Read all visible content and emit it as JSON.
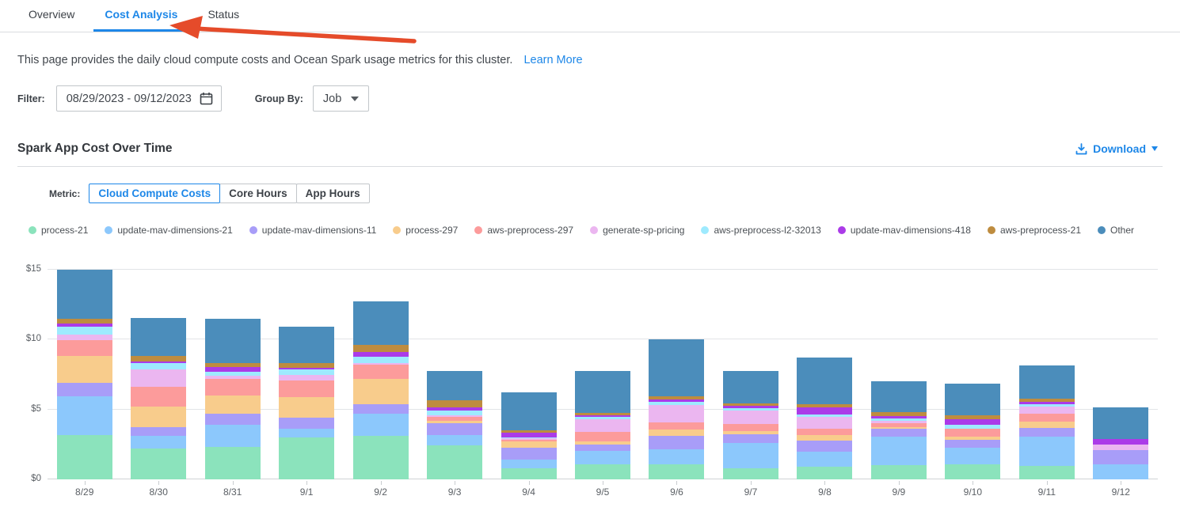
{
  "tabs": [
    {
      "label": "Overview",
      "active": false
    },
    {
      "label": "Cost Analysis",
      "active": true
    },
    {
      "label": "Status",
      "active": false
    }
  ],
  "arrow_color": "#e54b2a",
  "description": {
    "text": "This page provides the daily cloud compute costs and Ocean Spark usage metrics for this cluster.",
    "link_label": "Learn More"
  },
  "filter": {
    "label": "Filter:",
    "date_range": "08/29/2023  -  09/12/2023",
    "group_by_label": "Group By:",
    "group_by_value": "Job"
  },
  "section": {
    "title": "Spark App Cost Over Time",
    "download_label": "Download"
  },
  "metric": {
    "label": "Metric:",
    "options": [
      "Cloud Compute Costs",
      "Core Hours",
      "App Hours"
    ],
    "active": "Cloud Compute Costs"
  },
  "accent_blue": "#1d87e8",
  "chart_data": {
    "type": "bar",
    "stacked": true,
    "title": "Spark App Cost Over Time",
    "xlabel": "",
    "ylabel": "Cloud Compute Costs ($)",
    "ylim": [
      0,
      15
    ],
    "yticks": [
      {
        "value": 0,
        "label": "$0"
      },
      {
        "value": 5,
        "label": "$5"
      },
      {
        "value": 10,
        "label": "$10"
      },
      {
        "value": 15,
        "label": "$15"
      }
    ],
    "grid": true,
    "legend_position": "top",
    "categories": [
      "8/29",
      "8/30",
      "8/31",
      "9/1",
      "9/2",
      "9/3",
      "9/4",
      "9/5",
      "9/6",
      "9/7",
      "9/8",
      "9/9",
      "9/10",
      "9/11",
      "9/12"
    ],
    "series": [
      {
        "name": "process-21",
        "color": "#8be3bc",
        "values": [
          3.15,
          2.2,
          2.3,
          3.0,
          3.1,
          2.45,
          0.8,
          1.05,
          1.1,
          0.8,
          0.9,
          1.0,
          1.05,
          0.95,
          0.0
        ]
      },
      {
        "name": "update-mav-dimensions-21",
        "color": "#8cc8fc",
        "values": [
          2.8,
          0.9,
          1.6,
          0.6,
          1.6,
          0.7,
          0.6,
          1.0,
          1.05,
          1.8,
          1.1,
          2.05,
          1.2,
          2.1,
          1.1
        ]
      },
      {
        "name": "update-mav-dimensions-11",
        "color": "#a89df8",
        "values": [
          0.95,
          0.65,
          0.8,
          0.8,
          0.7,
          0.85,
          0.85,
          0.45,
          0.95,
          0.6,
          0.75,
          0.55,
          0.6,
          0.65,
          1.0
        ]
      },
      {
        "name": "process-297",
        "color": "#f8cc8c",
        "values": [
          1.95,
          1.45,
          1.3,
          1.5,
          1.8,
          0.2,
          0.45,
          0.2,
          0.45,
          0.25,
          0.4,
          0.15,
          0.2,
          0.45,
          0.0
        ]
      },
      {
        "name": "aws-preprocess-297",
        "color": "#fc9b9b",
        "values": [
          1.1,
          1.4,
          1.2,
          1.2,
          1.0,
          0.3,
          0.15,
          0.7,
          0.5,
          0.5,
          0.45,
          0.3,
          0.55,
          0.55,
          0.0
        ]
      },
      {
        "name": "generate-sp-pricing",
        "color": "#ebb6f0",
        "values": [
          0.4,
          1.25,
          0.2,
          0.4,
          0.1,
          0.1,
          0.1,
          0.9,
          1.3,
          1.0,
          0.85,
          0.15,
          0.05,
          0.5,
          0.4
        ]
      },
      {
        "name": "aws-preprocess-l2-32013",
        "color": "#9eeafe",
        "values": [
          0.6,
          0.45,
          0.3,
          0.35,
          0.45,
          0.3,
          0.05,
          0.2,
          0.2,
          0.15,
          0.2,
          0.15,
          0.25,
          0.2,
          0.0
        ]
      },
      {
        "name": "update-mav-dimensions-418",
        "color": "#ab3be8",
        "values": [
          0.2,
          0.15,
          0.35,
          0.15,
          0.35,
          0.25,
          0.35,
          0.1,
          0.15,
          0.15,
          0.5,
          0.2,
          0.4,
          0.15,
          0.4
        ]
      },
      {
        "name": "aws-preprocess-21",
        "color": "#be8c3f",
        "values": [
          0.35,
          0.4,
          0.3,
          0.35,
          0.5,
          0.5,
          0.15,
          0.15,
          0.25,
          0.2,
          0.25,
          0.25,
          0.3,
          0.2,
          0.0
        ]
      },
      {
        "name": "Other",
        "color": "#4b8dbb",
        "values": [
          3.5,
          2.7,
          3.15,
          2.6,
          3.15,
          2.1,
          2.75,
          3.0,
          4.05,
          2.3,
          3.3,
          2.25,
          2.25,
          2.4,
          2.25
        ]
      }
    ]
  }
}
